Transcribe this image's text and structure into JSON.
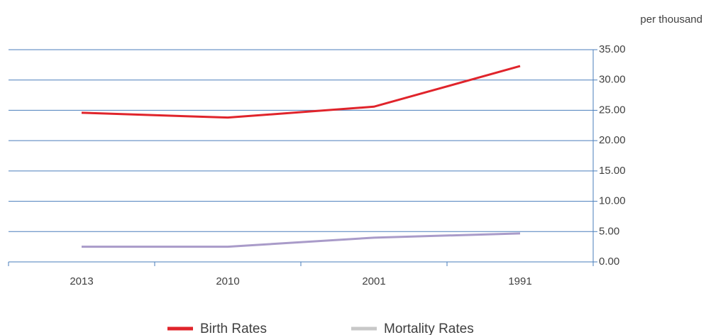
{
  "chart_data": {
    "type": "line",
    "y_axis_label": "per thousand",
    "categories": [
      "2013",
      "2010",
      "2001",
      "1991"
    ],
    "series": [
      {
        "name": "Birth Rates",
        "color": "#e0242b",
        "legend_color": "#e0242b",
        "values": [
          24.6,
          23.8,
          25.6,
          32.3
        ]
      },
      {
        "name": "Mortality Rates",
        "color": "#a99bc9",
        "legend_color": "#c8c8c8",
        "values": [
          2.5,
          2.5,
          4.0,
          4.7
        ]
      }
    ],
    "ylim": [
      0,
      35
    ],
    "yticks": [
      {
        "value": 0,
        "label": "0.00"
      },
      {
        "value": 5,
        "label": "5.00"
      },
      {
        "value": 10,
        "label": "10.00"
      },
      {
        "value": 15,
        "label": "15.00"
      },
      {
        "value": 20,
        "label": "20.00"
      },
      {
        "value": 25,
        "label": "25.00"
      },
      {
        "value": 30,
        "label": "30.00"
      },
      {
        "value": 35,
        "label": "35.00"
      }
    ],
    "y_axis_side": "right",
    "grid": true,
    "grid_color": "#4a7ebb",
    "legend": "bottom"
  }
}
